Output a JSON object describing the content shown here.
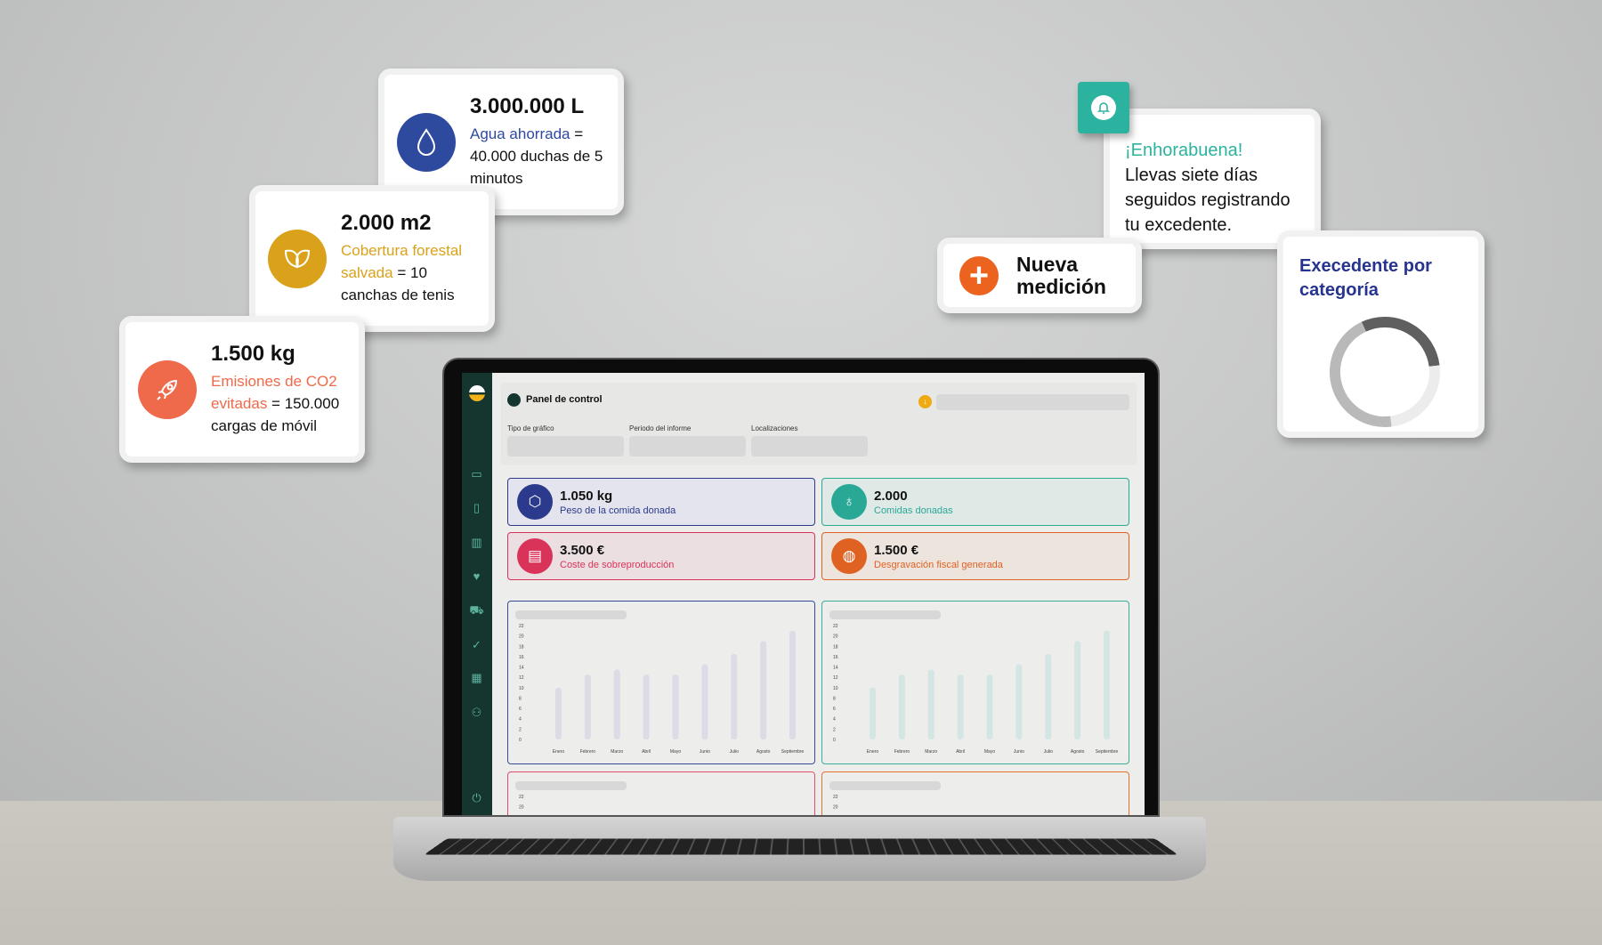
{
  "cards": {
    "water": {
      "value": "3.000.000 L",
      "highlight": "Agua ahorrada",
      "rest": " = 40.000 duchas de 5 minutos",
      "color": "#2e4a9e",
      "icon": "water-drop-icon"
    },
    "forest": {
      "value": "2.000 m2",
      "highlight": "Cobertura forestal salvada",
      "rest": " = 10 canchas de tenis",
      "color": "#d9a21a",
      "icon": "leaf-icon"
    },
    "co2": {
      "value": "1.500 kg",
      "highlight": "Emisiones de CO2 evitadas",
      "rest": " = 150.000 cargas de móvil",
      "color": "#ee6a4a",
      "icon": "rocket-icon"
    }
  },
  "notification": {
    "title": "¡Enhorabuena!",
    "body": "Llevas siete días seguidos registrando tu excedente.",
    "color": "#2bb39f",
    "icon": "bell-icon"
  },
  "new_measurement": {
    "label": "Nueva medición",
    "color": "#ec6320",
    "icon": "plus-icon"
  },
  "donut_card": {
    "title": "Execedente por categoría",
    "color": "#26348f",
    "segments": [
      {
        "value": 30,
        "color": "#5f5f5f"
      },
      {
        "value": 25,
        "color": "#ececec"
      },
      {
        "value": 45,
        "color": "#b9b9b9"
      }
    ]
  },
  "dashboard": {
    "title": "Panel de control",
    "filters": [
      "Tipo de gráfico",
      "Periodo del informe",
      "Localizaciones"
    ],
    "kpis": [
      {
        "value": "1.050 kg",
        "label": "Peso de la comida donada",
        "color": "#2b3a8c",
        "bg": "#e4e4ee",
        "icon": "box-icon"
      },
      {
        "value": "2.000",
        "label": "Comidas donadas",
        "color": "#2aa896",
        "bg": "#dfeae7",
        "icon": "apple-icon"
      },
      {
        "value": "3.500 €",
        "label": "Coste de sobreproducción",
        "color": "#d9335a",
        "bg": "#ecdfe2",
        "icon": "money-icon"
      },
      {
        "value": "1.500 €",
        "label": "Desgravación fiscal generada",
        "color": "#e06222",
        "bg": "#ede4de",
        "icon": "piggy-bank-icon"
      }
    ]
  },
  "chart_data": [
    {
      "type": "bar",
      "categories": [
        "Enero",
        "Febrero",
        "Marzo",
        "Abril",
        "Mayo",
        "Junio",
        "Julio",
        "Agosto",
        "Septiembre"
      ],
      "values": [
        10,
        12.5,
        13.5,
        12.5,
        12.5,
        14.5,
        16.5,
        19,
        21
      ],
      "yticks": [
        0,
        2,
        4,
        6,
        8,
        10,
        12,
        14,
        16,
        18,
        20,
        22
      ],
      "ylim": [
        0,
        22
      ],
      "color": "#dcdbe6",
      "border": "#3b4a98"
    },
    {
      "type": "bar",
      "categories": [
        "Enero",
        "Febrero",
        "Marzo",
        "Abril",
        "Mayo",
        "Junio",
        "Julio",
        "Agosto",
        "Septiembre"
      ],
      "values": [
        10,
        12.5,
        13.5,
        12.5,
        12.5,
        14.5,
        16.5,
        19,
        21
      ],
      "yticks": [
        0,
        2,
        4,
        6,
        8,
        10,
        12,
        14,
        16,
        18,
        20,
        22
      ],
      "ylim": [
        0,
        22
      ],
      "color": "#d4e6e3",
      "border": "#3aae98"
    },
    {
      "type": "bar",
      "yticks": [
        22,
        20
      ],
      "border": "#e0506e"
    },
    {
      "type": "bar",
      "yticks": [
        22,
        20
      ],
      "border": "#e57030"
    }
  ]
}
